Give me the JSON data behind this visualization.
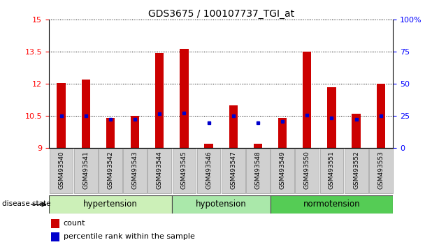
{
  "title": "GDS3675 / 100107737_TGI_at",
  "samples": [
    "GSM493540",
    "GSM493541",
    "GSM493542",
    "GSM493543",
    "GSM493544",
    "GSM493545",
    "GSM493546",
    "GSM493547",
    "GSM493548",
    "GSM493549",
    "GSM493550",
    "GSM493551",
    "GSM493552",
    "GSM493553"
  ],
  "red_values": [
    12.05,
    12.2,
    10.4,
    10.5,
    13.45,
    13.65,
    9.2,
    11.0,
    9.2,
    10.4,
    13.5,
    11.85,
    10.6,
    12.0
  ],
  "blue_values": [
    10.5,
    10.5,
    10.35,
    10.35,
    10.6,
    10.65,
    10.2,
    10.5,
    10.2,
    10.25,
    10.55,
    10.4,
    10.35,
    10.5
  ],
  "ylim_left": [
    9,
    15
  ],
  "ylim_right": [
    0,
    100
  ],
  "yticks_left": [
    9,
    10.5,
    12,
    13.5,
    15
  ],
  "yticks_right": [
    0,
    25,
    50,
    75,
    100
  ],
  "ytick_labels_left": [
    "9",
    "10.5",
    "12",
    "13.5",
    "15"
  ],
  "ytick_labels_right": [
    "0",
    "25",
    "50",
    "75",
    "100%"
  ],
  "groups": [
    {
      "label": "hypertension",
      "start": 0,
      "end": 5,
      "color": "#ccf0b8"
    },
    {
      "label": "hypotension",
      "start": 5,
      "end": 9,
      "color": "#aae8aa"
    },
    {
      "label": "normotension",
      "start": 9,
      "end": 14,
      "color": "#55cc55"
    }
  ],
  "bar_color": "#cc0000",
  "blue_color": "#0000cc",
  "bar_width": 0.35,
  "tick_bg_color": "#d0d0d0",
  "legend_red": "count",
  "legend_blue": "percentile rank within the sample",
  "disease_state_label": "disease state"
}
